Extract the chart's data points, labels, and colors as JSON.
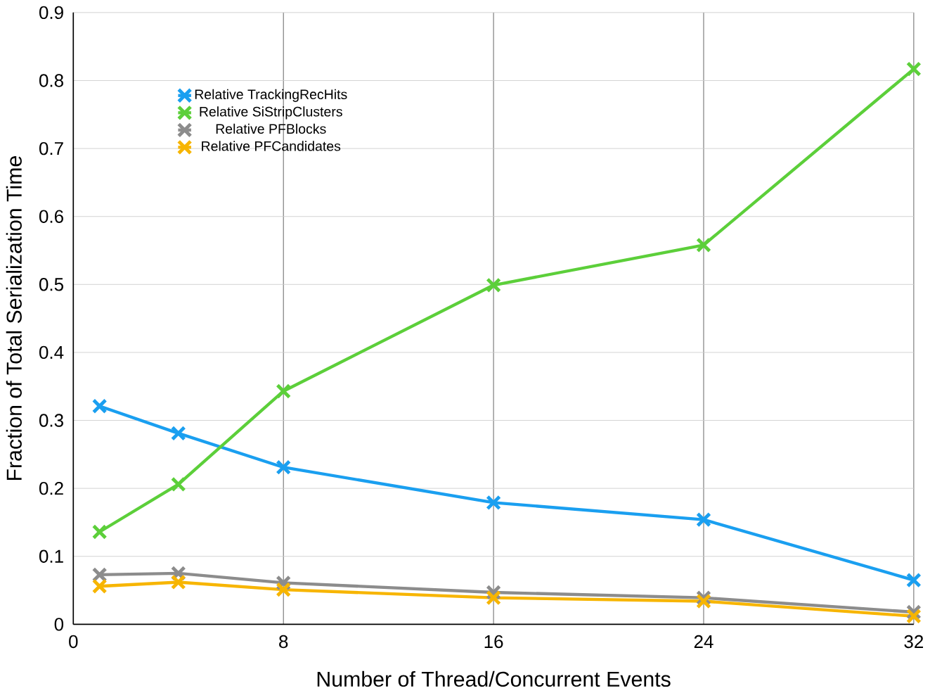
{
  "chart_data": {
    "type": "line",
    "xlabel": "Number of Thread/Concurrent Events",
    "ylabel": "Fraction of Total Serialization Time",
    "x": [
      1,
      4,
      8,
      16,
      24,
      32
    ],
    "series": [
      {
        "name": "Relative TrackingRecHits",
        "color": "#1a9ff0",
        "marker": "cross",
        "values": [
          0.321,
          0.281,
          0.231,
          0.179,
          0.154,
          0.065
        ]
      },
      {
        "name": "Relative SiStripClusters",
        "color": "#5ccf3a",
        "marker": "cross",
        "values": [
          0.136,
          0.206,
          0.343,
          0.499,
          0.558,
          0.817
        ]
      },
      {
        "name": "Relative PFBlocks",
        "color": "#8c8c8c",
        "marker": "cross",
        "values": [
          0.073,
          0.075,
          0.061,
          0.047,
          0.039,
          0.018
        ]
      },
      {
        "name": "Relative PFCandidates",
        "color": "#f7b500",
        "marker": "cross",
        "values": [
          0.056,
          0.062,
          0.051,
          0.039,
          0.034,
          0.012
        ]
      }
    ],
    "xlim": [
      0,
      32
    ],
    "xticks": [
      0,
      8,
      16,
      24,
      32
    ],
    "ylim": [
      0,
      0.9
    ],
    "yticks": [
      0,
      0.1,
      0.2,
      0.3,
      0.4,
      0.5,
      0.6,
      0.7,
      0.8,
      0.9
    ],
    "grid": true,
    "legend": "top left",
    "line_style": "solid"
  }
}
